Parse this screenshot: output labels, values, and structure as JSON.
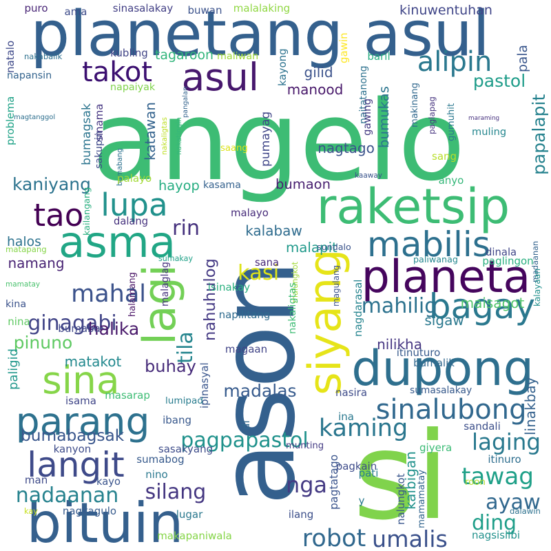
{
  "words": [
    {
      "text": "angelo",
      "color": "#3dbc74"
    },
    {
      "text": "ason",
      "color": "#34608d"
    },
    {
      "text": "si",
      "color": "#80d34c"
    },
    {
      "text": "planetang asul",
      "color": "#34608d"
    },
    {
      "text": "raketsip",
      "color": "#3dbc74"
    },
    {
      "text": "dupong",
      "color": "#2e6f8e"
    },
    {
      "text": "planeta",
      "color": "#45055d"
    },
    {
      "text": "bituin",
      "color": "#35608d"
    },
    {
      "text": "asul",
      "color": "#47186d"
    },
    {
      "text": "takot",
      "color": "#3b0f70"
    },
    {
      "text": "asma",
      "color": "#21a685"
    },
    {
      "text": "lagi",
      "color": "#73d056"
    },
    {
      "text": "siyang",
      "color": "#e6e419"
    },
    {
      "text": "sina",
      "color": "#86d549"
    },
    {
      "text": "parang",
      "color": "#2d718e"
    },
    {
      "text": "langit",
      "color": "#3e4a89"
    },
    {
      "text": "tao",
      "color": "#440154"
    },
    {
      "text": "lupa",
      "color": "#21918c"
    },
    {
      "text": "mabilis",
      "color": "#2d708e"
    },
    {
      "text": "bagay",
      "color": "#2a788e"
    },
    {
      "text": "sinalubong",
      "color": "#31688e"
    },
    {
      "text": "kaming",
      "color": "#2a768e"
    },
    {
      "text": "mahal",
      "color": "#3b528b"
    },
    {
      "text": "ginagabi",
      "color": "#414487"
    },
    {
      "text": "alipin",
      "color": "#2a788e"
    },
    {
      "text": "tila",
      "color": "#25858e"
    },
    {
      "text": "buhay",
      "color": "#472c7a"
    },
    {
      "text": "pinuno",
      "color": "#5ec962"
    },
    {
      "text": "robot",
      "color": "#31688e"
    },
    {
      "text": "umalis",
      "color": "#3b518b"
    },
    {
      "text": "nga",
      "color": "#443a83"
    },
    {
      "text": "laging",
      "color": "#29798e"
    },
    {
      "text": "tawag",
      "color": "#1fa088"
    },
    {
      "text": "ayaw",
      "color": "#31688e"
    },
    {
      "text": "ding",
      "color": "#1f9e89"
    },
    {
      "text": "pagpapastol",
      "color": "#20928c"
    },
    {
      "text": "silang",
      "color": "#453781"
    },
    {
      "text": "nadaanan",
      "color": "#26828e"
    },
    {
      "text": "kasi",
      "color": "#dde318"
    },
    {
      "text": "rin",
      "color": "#46327e"
    },
    {
      "text": "mahilig",
      "color": "#2c728e"
    },
    {
      "text": "maisagot",
      "color": "#52c569"
    },
    {
      "text": "sigaw",
      "color": "#2a788e"
    },
    {
      "text": "nilikha",
      "color": "#453581"
    },
    {
      "text": "madalas",
      "color": "#375b8d"
    },
    {
      "text": "halika",
      "color": "#48186a"
    },
    {
      "text": "matakot",
      "color": "#23898e"
    },
    {
      "text": "bumabagsak",
      "color": "#39568c"
    },
    {
      "text": "pastol",
      "color": "#1e9c89"
    },
    {
      "text": "gilid",
      "color": "#3b528b"
    },
    {
      "text": "manood",
      "color": "#48186a"
    },
    {
      "text": "nagtago",
      "color": "#3b528b"
    },
    {
      "text": "kaniyang",
      "color": "#2c738e"
    },
    {
      "text": "bumaon",
      "color": "#481f70"
    },
    {
      "text": "kalabaw",
      "color": "#2f6c8e"
    },
    {
      "text": "namang",
      "color": "#482374"
    },
    {
      "text": "malapit",
      "color": "#1f998a"
    },
    {
      "text": "nahuhulog",
      "color": "#443983"
    },
    {
      "text": "papalapit",
      "color": "#26828e"
    },
    {
      "text": "bumukas",
      "color": "#2b758e"
    },
    {
      "text": "naitatanong",
      "color": "#2d718e"
    },
    {
      "text": "kinuwentuhan",
      "color": "#404688"
    },
    {
      "text": "malalaking",
      "color": "#90d743"
    },
    {
      "text": "sinasalakay",
      "color": "#423f85"
    },
    {
      "text": "puro",
      "color": "#482576"
    },
    {
      "text": "buwan",
      "color": "#3b528b"
    },
    {
      "text": "ama",
      "color": "#3e4c8a"
    },
    {
      "text": "tagaroon",
      "color": "#31b57b"
    },
    {
      "text": "kubling",
      "color": "#414487"
    },
    {
      "text": "maliwan",
      "color": "#a0da39"
    },
    {
      "text": "baril",
      "color": "#28ae80"
    },
    {
      "text": "pala",
      "color": "#39568c"
    },
    {
      "text": "gawin",
      "color": "#fde725"
    },
    {
      "text": "napansin",
      "color": "#33638d"
    },
    {
      "text": "kayong",
      "color": "#2c728e"
    },
    {
      "text": "napaiyak",
      "color": "#81d34d"
    },
    {
      "text": "nakabalik",
      "color": "#2d708e"
    },
    {
      "text": "natalo",
      "color": "#3e4989"
    },
    {
      "text": "problema",
      "color": "#1fa287"
    },
    {
      "text": "magtanggol",
      "color": "#2e6f8e"
    },
    {
      "text": "sinama",
      "color": "#453581"
    },
    {
      "text": "nakatingin",
      "color": "#35b779"
    },
    {
      "text": "pangalan",
      "color": "#33638d"
    },
    {
      "text": "gawing",
      "color": "#443a83"
    },
    {
      "text": "makinang",
      "color": "#31688e"
    },
    {
      "text": "paglapag",
      "color": "#46337f"
    },
    {
      "text": "gumuhit",
      "color": "#2a778e"
    },
    {
      "text": "maraming",
      "color": "#46307e"
    },
    {
      "text": "muling",
      "color": "#24868e"
    },
    {
      "text": "saang",
      "color": "#dde318"
    },
    {
      "text": "sang",
      "color": "#b8de29"
    },
    {
      "text": "kaaway",
      "color": "#3a548c"
    },
    {
      "text": "anyo",
      "color": "#35b779"
    },
    {
      "text": "pumayag",
      "color": "#404688"
    },
    {
      "text": "katawan",
      "color": "#33628d"
    },
    {
      "text": "bumagsak",
      "color": "#2b748e"
    },
    {
      "text": "bumabang",
      "color": "#2c718e"
    },
    {
      "text": "sakupin",
      "color": "#3e4989"
    },
    {
      "text": "nakaligtas",
      "color": "#bddf26"
    },
    {
      "text": "palayo",
      "color": "#a2da37"
    },
    {
      "text": "hayop",
      "color": "#26ad81"
    },
    {
      "text": "kasama",
      "color": "#34618d"
    },
    {
      "text": "kailangang",
      "color": "#29af7f"
    },
    {
      "text": "dalang",
      "color": "#46327e"
    },
    {
      "text": "malayo",
      "color": "#472c7a"
    },
    {
      "text": "halos",
      "color": "#2c728e"
    },
    {
      "text": "sundalo",
      "color": "#3a538b"
    },
    {
      "text": "madaanan",
      "color": "#33638d"
    },
    {
      "text": "sumakay",
      "color": "#1fa187"
    },
    {
      "text": "matapang",
      "color": "#86d549"
    },
    {
      "text": "isinakay",
      "color": "#2ab07f"
    },
    {
      "text": "malaglag",
      "color": "#46327e"
    },
    {
      "text": "sana",
      "color": "#482878"
    },
    {
      "text": "malungkot",
      "color": "#a2da37"
    },
    {
      "text": "magulang",
      "color": "#3b528b"
    },
    {
      "text": "paliwanag",
      "color": "#24878e"
    },
    {
      "text": "dinala",
      "color": "#404688"
    },
    {
      "text": "paglingon",
      "color": "#29af7f"
    },
    {
      "text": "kalayaan",
      "color": "#21908d"
    },
    {
      "text": "mamatay",
      "color": "#4ac16d"
    },
    {
      "text": "halamang",
      "color": "#471164"
    },
    {
      "text": "nagdarasal",
      "color": "#25848e"
    },
    {
      "text": "napilitang",
      "color": "#2f6b8e"
    },
    {
      "text": "kina",
      "color": "#3b528b"
    },
    {
      "text": "nina",
      "color": "#5ec962"
    },
    {
      "text": "bumaba",
      "color": "#3f4788"
    },
    {
      "text": "nakaligtas",
      "color": "#3dbc74"
    },
    {
      "text": "magaan",
      "color": "#414487"
    },
    {
      "text": "bumalik",
      "color": "#31688e"
    },
    {
      "text": "itinuturo",
      "color": "#375a8c"
    },
    {
      "text": "paligid",
      "color": "#1f978b"
    },
    {
      "text": "ipinasyal",
      "color": "#39558c"
    },
    {
      "text": "isama",
      "color": "#404688"
    },
    {
      "text": "masarap",
      "color": "#3dbc74"
    },
    {
      "text": "nasira",
      "color": "#3e4c8a"
    },
    {
      "text": "sumasalakay",
      "color": "#375a8c"
    },
    {
      "text": "lumipad",
      "color": "#287c8e"
    },
    {
      "text": "di",
      "color": "#31688e"
    },
    {
      "text": "ibang",
      "color": "#38588c"
    },
    {
      "text": "linakbay",
      "color": "#34618d"
    },
    {
      "text": "ina",
      "color": "#2a788e"
    },
    {
      "text": "sandali",
      "color": "#3c4f8a"
    },
    {
      "text": "sasakyang",
      "color": "#3e4c8a"
    },
    {
      "text": "kanyon",
      "color": "#3e4c8a"
    },
    {
      "text": "munting",
      "color": "#443b84"
    },
    {
      "text": "giyera",
      "color": "#3bbb75"
    },
    {
      "text": "sumabog",
      "color": "#375a8c"
    },
    {
      "text": "pagkain",
      "color": "#3e4c8a"
    },
    {
      "text": "itinuro",
      "color": "#2e6e8e"
    },
    {
      "text": "nino",
      "color": "#2a788e"
    },
    {
      "text": "kaibigan",
      "color": "#21918c"
    },
    {
      "text": "pagtatago",
      "color": "#3a548c"
    },
    {
      "text": "man",
      "color": "#3e4a89"
    },
    {
      "text": "kayo",
      "color": "#3a548c"
    },
    {
      "text": "pati",
      "color": "#287c8e"
    },
    {
      "text": "roon",
      "color": "#b5de2b"
    },
    {
      "text": "nalungkot",
      "color": "#39568c"
    },
    {
      "text": "mamamatay",
      "color": "#32648e"
    },
    {
      "text": "kay",
      "color": "#c5e021"
    },
    {
      "text": "nagkagulo",
      "color": "#375b8d"
    },
    {
      "text": "lugar",
      "color": "#2a788e"
    },
    {
      "text": "ilang",
      "color": "#3c4f8a"
    },
    {
      "text": "y",
      "color": "#29798e"
    },
    {
      "text": "dalawin",
      "color": "#2c718e"
    },
    {
      "text": "makapaniwala",
      "color": "#86d549"
    },
    {
      "text": "nagsisilbi",
      "color": "#21918c"
    }
  ]
}
